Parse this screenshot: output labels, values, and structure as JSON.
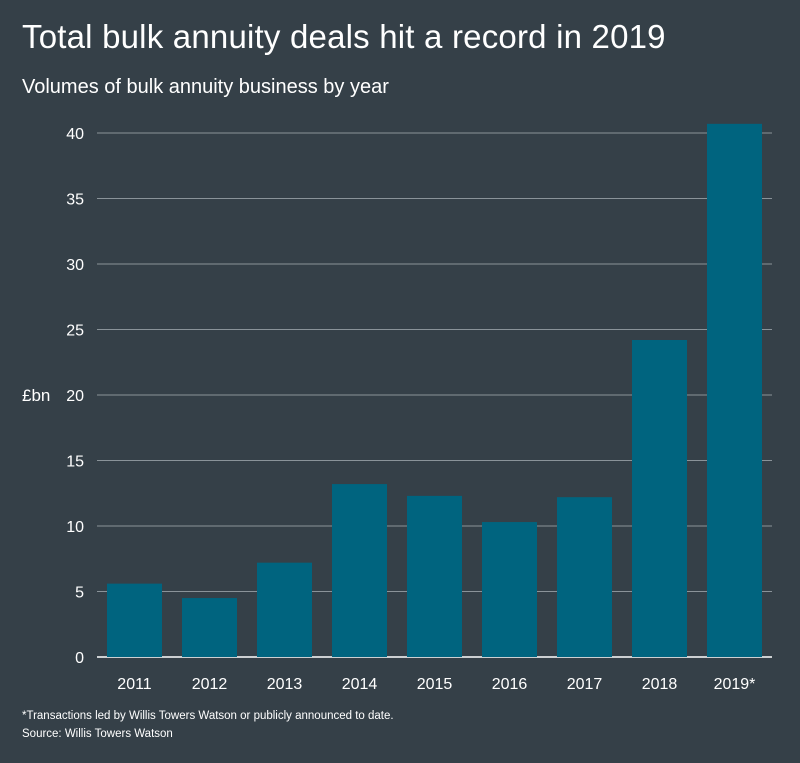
{
  "title": "Total bulk annuity deals hit a record in 2019",
  "subtitle": "Volumes of bulk annuity business by year",
  "footnote": "*Transactions led by Willis Towers Watson or publicly announced to date.",
  "source": "Source: Willis Towers Watson",
  "colors": {
    "background": "#354048",
    "bar": "#00647f",
    "grid": "#8a9399",
    "text": "#ffffff"
  },
  "chart_data": {
    "type": "bar",
    "title": "Total bulk annuity deals hit a record in 2019",
    "subtitle": "Volumes of bulk annuity business by year",
    "xlabel": "",
    "ylabel": "£bn",
    "categories": [
      "2011",
      "2012",
      "2013",
      "2014",
      "2015",
      "2016",
      "2017",
      "2018",
      "2019*"
    ],
    "values": [
      5.6,
      4.5,
      7.2,
      13.2,
      12.3,
      10.3,
      12.2,
      24.2,
      40.7
    ],
    "ylim": [
      0,
      40
    ],
    "yticks": [
      0,
      5,
      10,
      15,
      20,
      25,
      30,
      35,
      40
    ],
    "grid": true
  }
}
